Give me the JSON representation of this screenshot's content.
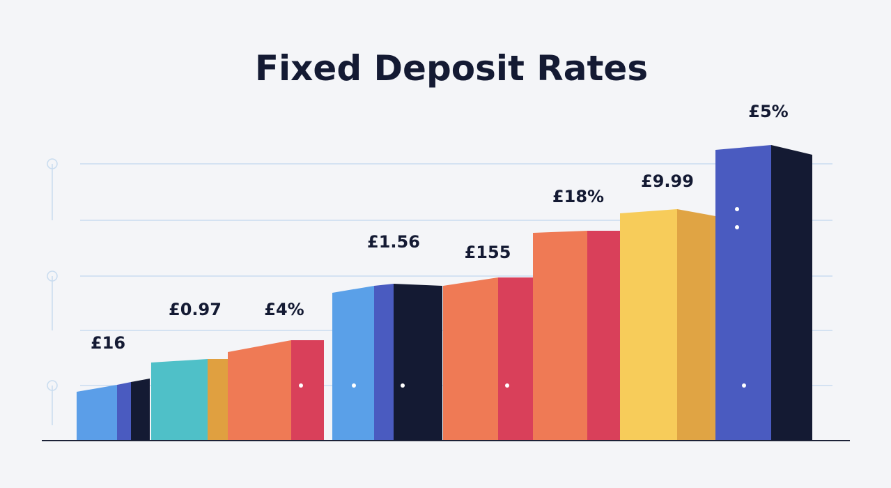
{
  "title": "Fixed Deposit Rates",
  "labels": [
    "£16",
    "£0.97",
    "£4%",
    "£1.56",
    "£155",
    "£18%",
    "£9.99",
    "£5%"
  ]
}
